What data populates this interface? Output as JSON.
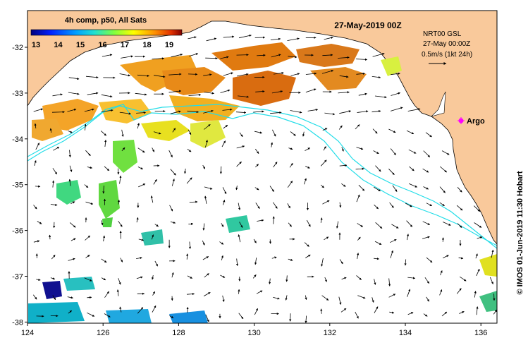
{
  "colorbar": {
    "title": "4h comp, p50, All Sats",
    "ticks": [
      "13",
      "14",
      "15",
      "16",
      "17",
      "18",
      "19"
    ]
  },
  "header": {
    "date": "27-May-2019 00Z"
  },
  "legend": {
    "line1": "NRT00 GSL",
    "line2": "27-May 00:00Z",
    "line3": "0.5m/s (1kt 24h)"
  },
  "marker": {
    "label": "Argo",
    "color": "#ff00ff"
  },
  "axes": {
    "x_ticks": [
      "124",
      "126",
      "128",
      "130",
      "132",
      "134",
      "136"
    ],
    "y_ticks": [
      "-32",
      "-33",
      "-34",
      "-35",
      "-36",
      "-37",
      "-38"
    ]
  },
  "credit": "© IMOS 01-Jun-2019 11:30 Hobart",
  "colors": {
    "land": "#f9c99b",
    "contour": "#22dde8",
    "marker": "#ff00ff"
  }
}
